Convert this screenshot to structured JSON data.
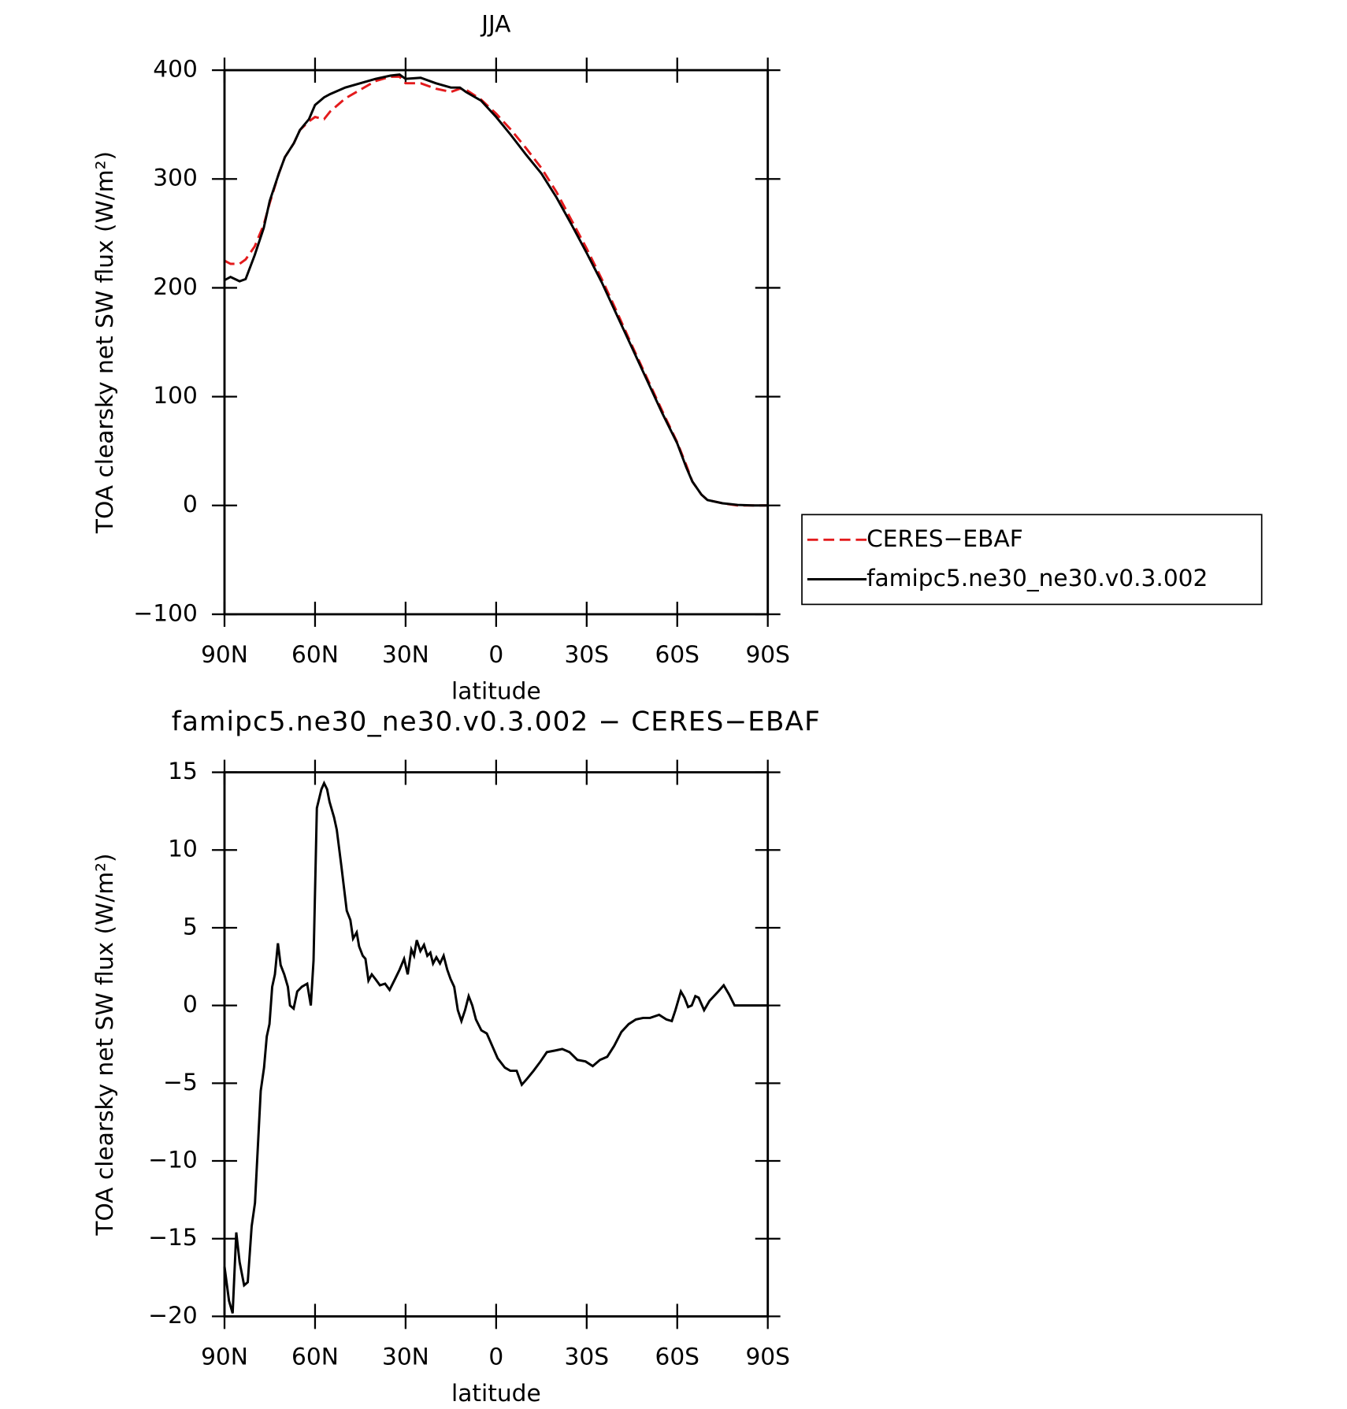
{
  "chart_data": [
    {
      "type": "line",
      "title": "JJA",
      "xlabel": "latitude",
      "ylabel": "TOA clearsky net SW flux (W/m²)",
      "x": [
        90,
        88,
        85,
        83,
        80,
        77,
        75,
        72,
        70,
        67,
        65,
        62,
        60,
        57,
        55,
        50,
        45,
        40,
        35,
        32,
        30,
        25,
        20,
        15,
        12,
        10,
        5,
        0,
        -5,
        -10,
        -15,
        -20,
        -25,
        -30,
        -35,
        -40,
        -45,
        -50,
        -55,
        -60,
        -63,
        -65,
        -68,
        -70,
        -75,
        -80,
        -85,
        -90
      ],
      "series": [
        {
          "name": "CERES−EBAF",
          "color": "#e31a1c",
          "dash": "dashed",
          "values": [
            225,
            222,
            222,
            226,
            238,
            258,
            278,
            305,
            320,
            333,
            345,
            353,
            357,
            355,
            362,
            374,
            382,
            390,
            394,
            394,
            388,
            388,
            383,
            380,
            383,
            382,
            373,
            360,
            345,
            328,
            310,
            288,
            262,
            236,
            208,
            178,
            147,
            117,
            87,
            58,
            37,
            22,
            10,
            5,
            2,
            0,
            0,
            0
          ]
        },
        {
          "name": "famipc5.ne30_ne30.v0.3.002",
          "color": "#000000",
          "dash": "solid",
          "values": [
            207,
            210,
            206,
            208,
            230,
            255,
            280,
            305,
            320,
            333,
            345,
            355,
            368,
            375,
            378,
            384,
            388,
            392,
            395,
            396,
            392,
            393,
            388,
            384,
            384,
            380,
            372,
            357,
            340,
            322,
            305,
            283,
            258,
            232,
            205,
            175,
            145,
            115,
            85,
            57,
            35,
            22,
            10,
            5,
            2,
            0.5,
            0,
            0
          ]
        }
      ],
      "xlim": [
        90,
        -90
      ],
      "xticks": [
        {
          "value": 90,
          "label": "90N"
        },
        {
          "value": 60,
          "label": "60N"
        },
        {
          "value": 30,
          "label": "30N"
        },
        0,
        {
          "value": -30,
          "label": "30S"
        },
        {
          "value": -60,
          "label": "60S"
        },
        {
          "value": -90,
          "label": "90S"
        }
      ],
      "ylim": [
        -100,
        400
      ],
      "yticks": [
        {
          "value": -100,
          "label": "−100"
        },
        0,
        100,
        200,
        300,
        400
      ]
    },
    {
      "type": "line",
      "title": "famipc5.ne30_ne30.v0.3.002 − CERES−EBAF",
      "xlabel": "latitude",
      "ylabel": "TOA clearsky net SW flux (W/m²)",
      "x": [
        90,
        88.5,
        87.3,
        86.1,
        85,
        83.5,
        82.3,
        81,
        79.9,
        78,
        76.9,
        76,
        75.1,
        74.2,
        73.3,
        72.3,
        71.4,
        70.2,
        69,
        68.3,
        67.1,
        65.9,
        64.4,
        62.6,
        61.4,
        60.5,
        59.4,
        57.9,
        57,
        56,
        55.2,
        53.7,
        52.8,
        51.3,
        49.5,
        48.3,
        47.4,
        46.2,
        45.4,
        44.2,
        43.3,
        42.3,
        41.2,
        40,
        38.5,
        36.8,
        35.3,
        33.5,
        32,
        30.5,
        29.3,
        28.1,
        27.2,
        26.3,
        25.1,
        23.9,
        22.8,
        21.8,
        20.9,
        19.8,
        18.6,
        17.4,
        16.2,
        15.1,
        13.9,
        12.7,
        11.5,
        10.3,
        9.1,
        7.9,
        6.7,
        4.9,
        3.1,
        1.3,
        -0.5,
        -2.9,
        -4.7,
        -6.8,
        -8.5,
        -10.3,
        -12.4,
        -14.7,
        -16.8,
        -19.5,
        -21.9,
        -24.3,
        -26.9,
        -29.6,
        -32,
        -34.4,
        -36.8,
        -39.1,
        -41.5,
        -43.9,
        -46.3,
        -48.7,
        -51,
        -54,
        -56.4,
        -58.2,
        -59.4,
        -61.2,
        -62.4,
        -63.6,
        -64.8,
        -66,
        -67.1,
        -68.9,
        -70.7,
        -73.6,
        -75.4,
        -77.2,
        -79,
        -82.6,
        -90
      ],
      "values": [
        -16.8,
        -19,
        -19.8,
        -14.6,
        -16.5,
        -18,
        -17.8,
        -14.2,
        -12.7,
        -5.5,
        -4,
        -2,
        -1.2,
        1.2,
        2,
        4,
        2.6,
        2,
        1.2,
        0,
        -0.2,
        0.9,
        1.2,
        1.4,
        0,
        2.9,
        12.7,
        13.9,
        14.3,
        13.9,
        13.1,
        12.1,
        11.3,
        9,
        6.1,
        5.5,
        4.3,
        4.7,
        3.8,
        3.2,
        3,
        1.6,
        2,
        1.7,
        1.3,
        1.4,
        1,
        1.7,
        2.3,
        3,
        2,
        3.6,
        3.2,
        4.2,
        3.5,
        3.9,
        3.2,
        3.4,
        2.7,
        3.1,
        2.7,
        3.2,
        2.3,
        1.7,
        1.2,
        -0.3,
        -1,
        -0.3,
        0.6,
        0,
        -0.9,
        -1.6,
        -1.8,
        -2.6,
        -3.4,
        -4,
        -4.2,
        -4.2,
        -5.1,
        -4.7,
        -4.2,
        -3.6,
        -3,
        -2.9,
        -2.8,
        -3,
        -3.5,
        -3.6,
        -3.9,
        -3.5,
        -3.3,
        -2.6,
        -1.7,
        -1.2,
        -0.9,
        -0.8,
        -0.8,
        -0.6,
        -0.9,
        -1,
        -0.3,
        0.9,
        0.5,
        -0.1,
        0,
        0.6,
        0.5,
        -0.3,
        0.3,
        0.9,
        1.3,
        0.7,
        0,
        0,
        0
      ],
      "color": "#000000",
      "xlim": [
        90,
        -90
      ],
      "xticks": [
        {
          "value": 90,
          "label": "90N"
        },
        {
          "value": 60,
          "label": "60N"
        },
        {
          "value": 30,
          "label": "30N"
        },
        0,
        {
          "value": -30,
          "label": "30S"
        },
        {
          "value": -60,
          "label": "60S"
        },
        {
          "value": -90,
          "label": "90S"
        }
      ],
      "ylim": [
        -20,
        15
      ],
      "yticks": [
        {
          "value": -20,
          "label": "−20"
        },
        {
          "value": -15,
          "label": "−15"
        },
        {
          "value": -10,
          "label": "−10"
        },
        {
          "value": -5,
          "label": "−5"
        },
        0,
        5,
        10,
        15
      ]
    }
  ]
}
